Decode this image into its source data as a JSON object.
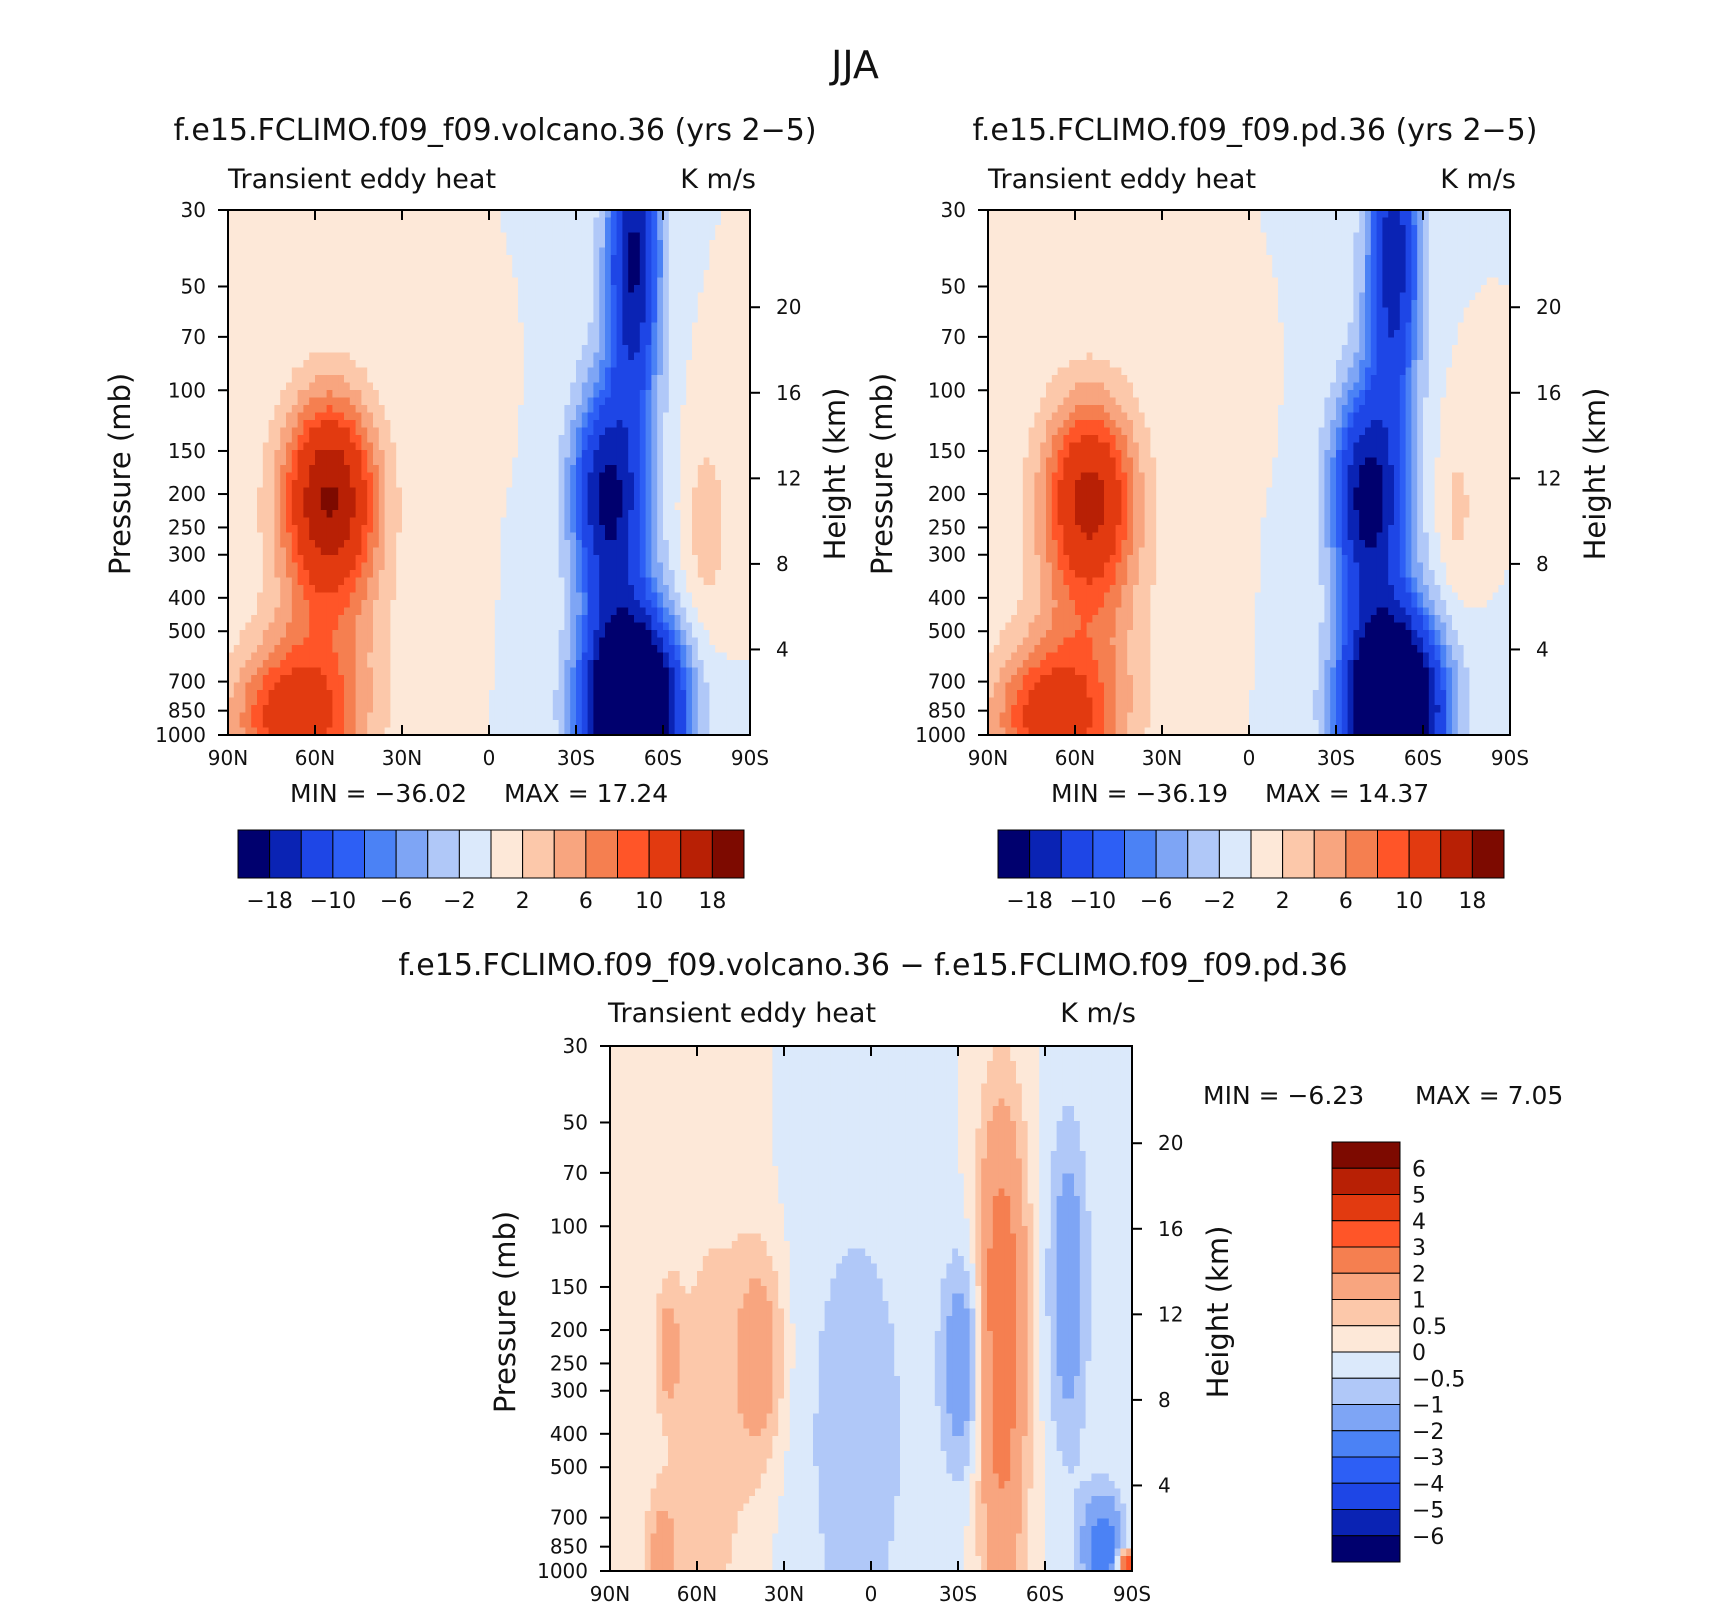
{
  "figure_title": "JJA",
  "chart_data": [
    {
      "type": "heatmap",
      "id": "volcano",
      "title": "f.e15.FCLIMO.f09_f09.volcano.36 (yrs 2−5)",
      "left_label": "Transient eddy heat",
      "right_label": "K m/s",
      "ylabel": "Pressure (mb)",
      "ylabel_right": "Height (km)",
      "x_ticks": [
        "90N",
        "60N",
        "30N",
        "0",
        "30S",
        "60S",
        "90S"
      ],
      "y_ticks": [
        "30",
        "50",
        "70",
        "100",
        "150",
        "200",
        "250",
        "300",
        "400",
        "500",
        "700",
        "850",
        "1000"
      ],
      "height_ticks": [
        "4",
        "8",
        "12",
        "16",
        "20"
      ],
      "min_text": "MIN =  −36.02",
      "max_text": "MAX =   17.24",
      "colorbar_labels": [
        "−18",
        "−10",
        "−6",
        "−2",
        "2",
        "6",
        "10",
        "18"
      ],
      "levels": [
        -18,
        -14,
        -10,
        -8,
        -6,
        -4,
        -2,
        0,
        2,
        4,
        6,
        8,
        10,
        14,
        18
      ],
      "blobs": [
        {
          "lat": 55,
          "p": 200,
          "a": 16,
          "wlat": 11,
          "wz": 0.45
        },
        {
          "lat": 70,
          "p": 900,
          "a": 10,
          "wlat": 14,
          "wz": 0.35
        },
        {
          "lat": 55,
          "p": 600,
          "a": 5,
          "wlat": 14,
          "wz": 0.9
        },
        {
          "lat": 5,
          "p": 100,
          "a": 2,
          "wlat": 5,
          "wz": 0.25
        },
        {
          "lat": -40,
          "p": 200,
          "a": -14,
          "wlat": 8,
          "wz": 0.45
        },
        {
          "lat": -50,
          "p": 850,
          "a": -34,
          "wlat": 11,
          "wz": 0.4
        },
        {
          "lat": -50,
          "p": 40,
          "a": -18,
          "wlat": 6,
          "wz": 0.7
        },
        {
          "lat": -45,
          "p": 500,
          "a": -8,
          "wlat": 9,
          "wz": 1.2
        },
        {
          "lat": -75,
          "p": 250,
          "a": 3,
          "wlat": 6,
          "wz": 0.5
        }
      ]
    },
    {
      "type": "heatmap",
      "id": "pd",
      "title": "f.e15.FCLIMO.f09_f09.pd.36 (yrs 2−5)",
      "left_label": "Transient eddy heat",
      "right_label": "K m/s",
      "ylabel": "Pressure (mb)",
      "ylabel_right": "Height (km)",
      "x_ticks": [
        "90N",
        "60N",
        "30N",
        "0",
        "30S",
        "60S",
        "90S"
      ],
      "y_ticks": [
        "30",
        "50",
        "70",
        "100",
        "150",
        "200",
        "250",
        "300",
        "400",
        "500",
        "700",
        "850",
        "1000"
      ],
      "height_ticks": [
        "4",
        "8",
        "12",
        "16",
        "20"
      ],
      "min_text": "MIN =  −36.19",
      "max_text": "MAX =   14.37",
      "colorbar_labels": [
        "−18",
        "−10",
        "−6",
        "−2",
        "2",
        "6",
        "10",
        "18"
      ],
      "levels": [
        -18,
        -14,
        -10,
        -8,
        -6,
        -4,
        -2,
        0,
        2,
        4,
        6,
        8,
        10,
        14,
        18
      ],
      "blobs": [
        {
          "lat": 55,
          "p": 200,
          "a": 13,
          "wlat": 11,
          "wz": 0.45
        },
        {
          "lat": 70,
          "p": 900,
          "a": 10,
          "wlat": 14,
          "wz": 0.35
        },
        {
          "lat": 55,
          "p": 600,
          "a": 5,
          "wlat": 14,
          "wz": 0.9
        },
        {
          "lat": 5,
          "p": 100,
          "a": 2,
          "wlat": 5,
          "wz": 0.25
        },
        {
          "lat": -40,
          "p": 200,
          "a": -15,
          "wlat": 8,
          "wz": 0.45
        },
        {
          "lat": -50,
          "p": 850,
          "a": -34,
          "wlat": 11,
          "wz": 0.4
        },
        {
          "lat": -50,
          "p": 40,
          "a": -16,
          "wlat": 6,
          "wz": 0.7
        },
        {
          "lat": -45,
          "p": 500,
          "a": -8,
          "wlat": 9,
          "wz": 1.2
        },
        {
          "lat": -72,
          "p": 220,
          "a": 2.5,
          "wlat": 5,
          "wz": 0.4
        }
      ]
    },
    {
      "type": "heatmap",
      "id": "diff",
      "title": "f.e15.FCLIMO.f09_f09.volcano.36 − f.e15.FCLIMO.f09_f09.pd.36",
      "left_label": "Transient eddy heat",
      "right_label": "K m/s",
      "ylabel": "Pressure (mb)",
      "ylabel_right": "Height (km)",
      "x_ticks": [
        "90N",
        "60N",
        "30N",
        "0",
        "30S",
        "60S",
        "90S"
      ],
      "y_ticks": [
        "30",
        "50",
        "70",
        "100",
        "150",
        "200",
        "250",
        "300",
        "400",
        "500",
        "700",
        "850",
        "1000"
      ],
      "height_ticks": [
        "4",
        "8",
        "12",
        "16",
        "20"
      ],
      "min_text": "MIN =   −6.23",
      "max_text": "MAX =     7.05",
      "colorbar_labels": [
        "6",
        "5",
        "4",
        "3",
        "2",
        "1",
        "0.5",
        "0",
        "−0.5",
        "−1",
        "−2",
        "−3",
        "−4",
        "−5",
        "−6"
      ],
      "levels": [
        -6,
        -5,
        -4,
        -3,
        -2,
        -1,
        -0.5,
        0,
        0.5,
        1,
        2,
        3,
        4,
        5,
        6
      ],
      "blobs": [
        {
          "lat": -45,
          "p": 150,
          "a": 2.6,
          "wlat": 6,
          "wz": 0.9
        },
        {
          "lat": -45,
          "p": 600,
          "a": 1.2,
          "wlat": 6,
          "wz": 0.8
        },
        {
          "lat": 38,
          "p": 240,
          "a": 1.5,
          "wlat": 6,
          "wz": 0.5
        },
        {
          "lat": 70,
          "p": 230,
          "a": 1.2,
          "wlat": 3,
          "wz": 0.3
        },
        {
          "lat": 72,
          "p": 900,
          "a": 1.3,
          "wlat": 4,
          "wz": 0.3
        },
        {
          "lat": -32,
          "p": 250,
          "a": -1.8,
          "wlat": 5,
          "wz": 0.5
        },
        {
          "lat": -68,
          "p": 150,
          "a": -1.6,
          "wlat": 5,
          "wz": 0.8
        },
        {
          "lat": -80,
          "p": 850,
          "a": -2.8,
          "wlat": 5,
          "wz": 0.25
        },
        {
          "lat": -88,
          "p": 950,
          "a": 4.5,
          "wlat": 2,
          "wz": 0.06
        },
        {
          "lat": 5,
          "p": 400,
          "a": -0.7,
          "wlat": 18,
          "wz": 1.5
        },
        {
          "lat": 55,
          "p": 400,
          "a": 0.7,
          "wlat": 12,
          "wz": 1.5
        }
      ]
    }
  ],
  "colors": {
    "ramp": [
      "#00006e",
      "#0a23b4",
      "#1e46e6",
      "#2d5ff5",
      "#4b82f5",
      "#7ea5f5",
      "#b0c8f8",
      "#dbe9fb",
      "#fde8d8",
      "#fcc8aa",
      "#f8a57f",
      "#f57f50",
      "#ff5528",
      "#e23a10",
      "#b82005",
      "#7d0a00"
    ]
  }
}
